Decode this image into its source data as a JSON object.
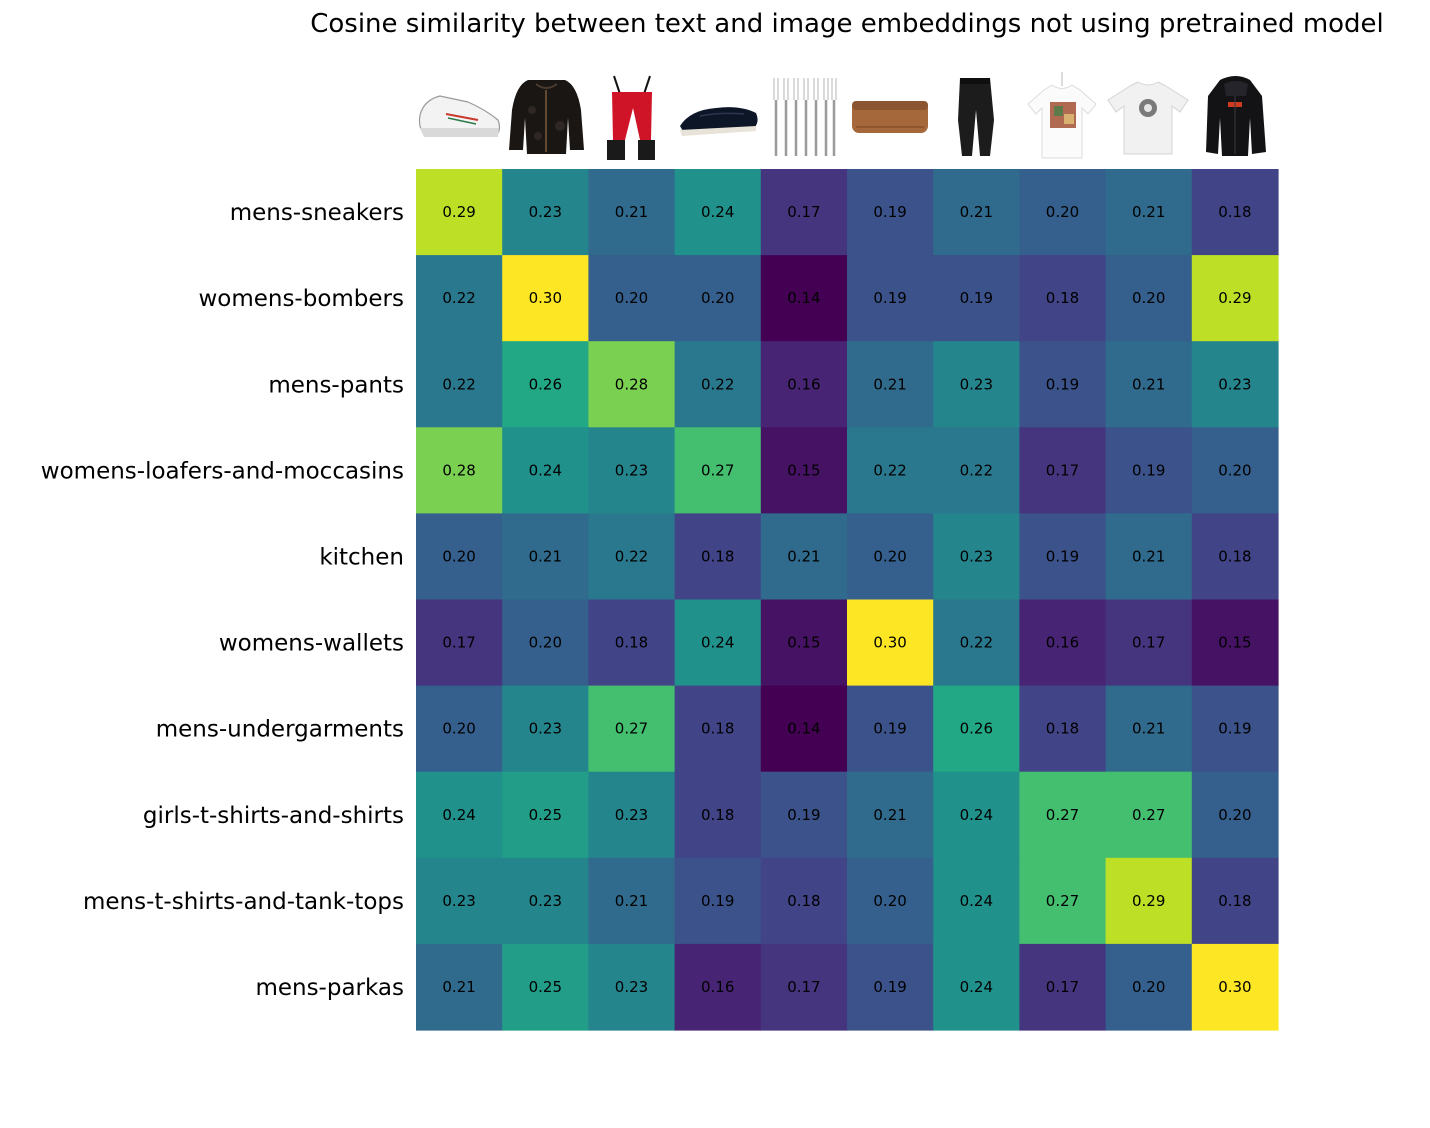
{
  "chart_data": {
    "type": "heatmap",
    "title": "Cosine similarity between text and image embeddings not using pretrained model",
    "rows": [
      "mens-sneakers",
      "womens-bombers",
      "mens-pants",
      "womens-loafers-and-moccasins",
      "kitchen",
      "womens-wallets",
      "mens-undergarments",
      "girls-t-shirts-and-shirts",
      "mens-t-shirts-and-tank-tops",
      "mens-parkas"
    ],
    "columns": [
      "sneaker-image",
      "bomber-jacket-image",
      "red-ski-pants-image",
      "loafer-image",
      "forks-image",
      "wallet-image",
      "leggings-image",
      "printed-girls-t-shirt-image",
      "graphic-mens-t-shirt-image",
      "parka-image"
    ],
    "values": [
      [
        0.29,
        0.23,
        0.21,
        0.24,
        0.17,
        0.19,
        0.21,
        0.2,
        0.21,
        0.18
      ],
      [
        0.22,
        0.3,
        0.2,
        0.2,
        0.14,
        0.19,
        0.19,
        0.18,
        0.2,
        0.29
      ],
      [
        0.22,
        0.26,
        0.28,
        0.22,
        0.16,
        0.21,
        0.23,
        0.19,
        0.21,
        0.23
      ],
      [
        0.28,
        0.24,
        0.23,
        0.27,
        0.15,
        0.22,
        0.22,
        0.17,
        0.19,
        0.2
      ],
      [
        0.2,
        0.21,
        0.22,
        0.18,
        0.21,
        0.2,
        0.23,
        0.19,
        0.21,
        0.18
      ],
      [
        0.17,
        0.2,
        0.18,
        0.24,
        0.15,
        0.3,
        0.22,
        0.16,
        0.17,
        0.15
      ],
      [
        0.2,
        0.23,
        0.27,
        0.18,
        0.14,
        0.19,
        0.26,
        0.18,
        0.21,
        0.19
      ],
      [
        0.24,
        0.25,
        0.23,
        0.18,
        0.19,
        0.21,
        0.24,
        0.27,
        0.27,
        0.2
      ],
      [
        0.23,
        0.23,
        0.21,
        0.19,
        0.18,
        0.2,
        0.24,
        0.27,
        0.29,
        0.18
      ],
      [
        0.21,
        0.25,
        0.23,
        0.16,
        0.17,
        0.19,
        0.24,
        0.17,
        0.2,
        0.3
      ]
    ],
    "value_range": [
      0.14,
      0.3
    ],
    "colormap": "viridis",
    "grid": false,
    "colorbar": false
  }
}
